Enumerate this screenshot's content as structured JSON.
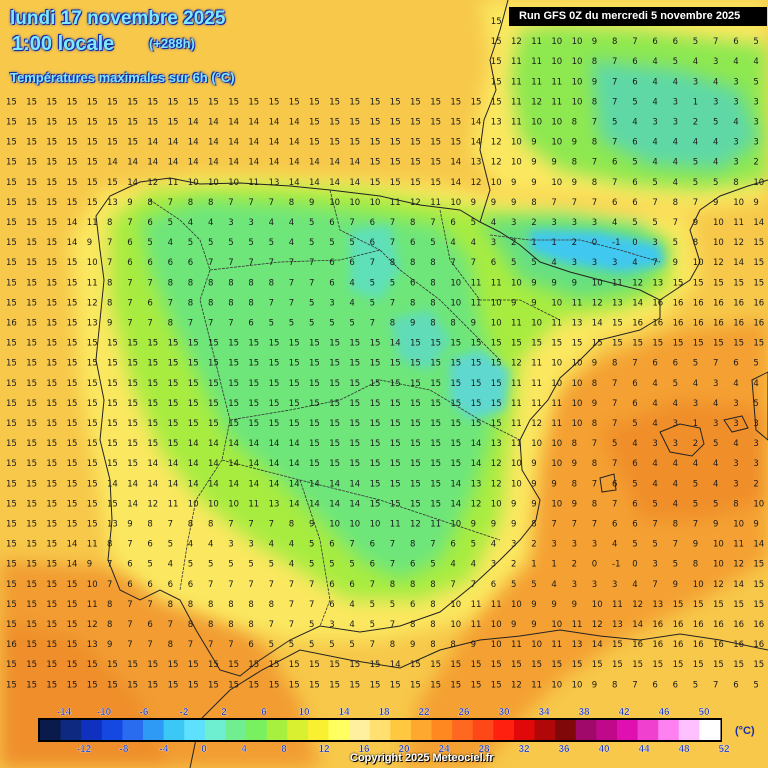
{
  "header": {
    "date": "lundi 17 novembre 2025",
    "local_time": "1:00 locale",
    "lead_time": "(+288h)",
    "parameter": "Températures maximales sur 6h (°C)"
  },
  "run_label": "Run GFS 0Z du mercredi 5 novembre 2025",
  "copyright": "Copyright 2025 Meteociel.fr",
  "legend": {
    "unit": "(°C)",
    "upper_labels": [
      "-14",
      "-10",
      "-6",
      "-2",
      "2",
      "6",
      "10",
      "14",
      "18",
      "22",
      "26",
      "30",
      "34",
      "38",
      "42",
      "46",
      "50"
    ],
    "lower_labels": [
      "-12",
      "-8",
      "-4",
      "0",
      "4",
      "8",
      "12",
      "16",
      "20",
      "24",
      "28",
      "32",
      "36",
      "40",
      "44",
      "48",
      "52"
    ],
    "colors": [
      "#0a1a4a",
      "#0d2a80",
      "#1030c0",
      "#1448e0",
      "#2a6cf0",
      "#2e9af5",
      "#3cc8f5",
      "#5ee0ff",
      "#6ef0d0",
      "#70ee90",
      "#78f060",
      "#a8f040",
      "#d8f030",
      "#f8f030",
      "#ffff60",
      "#fff0a0",
      "#ffe070",
      "#ffc840",
      "#ffa830",
      "#ff8820",
      "#ff6820",
      "#ff4818",
      "#ff2010",
      "#e00808",
      "#b00808",
      "#800808",
      "#a0086a",
      "#c0088a",
      "#e010b0",
      "#f040d0",
      "#ff80f0",
      "#ffc0ff",
      "#ffffff"
    ]
  },
  "map_values": {
    "description_note": "",
    "rows": [
      "15 15 15 15 15 15 15 15 15 15 15 15 15 15 15 15 15 15 15 14 15 15 15 15 15 15 15 15 15 15 15 15 15 15 15 15 15 15",
      "15 15 15 15 15 15 15 15 15 15 15 15 15 15 15 15 15 15 15 15 15 15 15 15 15 12 11 10 10 9 8 7 6 6 5 7 6 5",
      "15 15 15 15 15 15 15 15 15 15 15 15 15 15 15 15 15 15 15 15 15 15 15 15 15 11 11 10 10 8 7 6 4 5 4 3 4 4",
      "15 15 15 15 15 15 15 15 15 15 15 15 15 15 15 15 15 15 15 15 15 15 15 15 15 11 11 11 10 9 7 6 4 4 3 4 3 5",
      "15 15 15 15 15 15 15 15 15 15 15 15 15 15 15 15 15 15 15 15 15 15 15 15 15 11 12 11 10 8 7 5 4 3 1 3 3 3",
      "15 15 15 15 15 15 15 15 15 14 14 14 14 14 14 15 15 15 15 15 15 15 15 14 13 11 10 10 8 7 5 4 3 3 2 5 4 3",
      "15 15 15 15 15 15 15 14 14 14 14 14 14 14 14 15 15 15 15 15 15 15 15 14 12 10 9 10 9 8 7 6 4 4 4 4 3 3",
      "15 15 15 15 15 14 14 14 14 14 14 14 14 14 14 14 14 14 15 15 15 15 14 13 12 10 9 9 8 7 6 5 4 4 5 4 3 2",
      "15 15 15 15 15 15 14 12 11 10 10 10 11 13 14 14 14 14 15 15 15 15 14 12 10 9 9 10 9 8 7 6 5 4 5 5 8 10",
      "15 15 15 15 15 13 9 8 7 8 8 7 7 7 8 9 10 10 10 11 12 11 10 9 9 9 8 7 7 7 6 6 7 8 7 9 10 9",
      "15 15 15 14 11 8 7 6 5 4 4 3 3 4 4 5 6 7 6 7 8 7 6 5 4 3 2 3 3 3 4 5 5 7 9 10 11 14",
      "15 15 15 14 9 7 6 5 4 5 5 5 5 5 4 5 5 5 6 7 6 5 4 4 3 2 1 1 2 0 -1 0 3 5 8 10 12 15",
      "15 15 15 15 10 7 6 6 6 6 7 7 7 7 7 7 6 6 7 8 8 8 7 7 6 5 5 4 3 3 3 4 7 9 10 12 14 15",
      "15 15 15 15 11 8 7 7 8 8 8 8 8 8 7 7 6 4 5 5 6 8 10 11 11 10 9 9 9 10 11 12 13 15 15 15 15 15",
      "15 15 15 15 12 8 7 6 7 8 8 8 8 7 7 5 3 4 5 7 8 8 10 11 10 9 9 10 11 12 13 14 16 16 16 16 16 16",
      "16 15 15 15 13 9 7 7 8 7 7 7 6 5 5 5 5 5 7 8 9 8 8 9 10 11 10 11 13 14 15 16 16 16 16 16 16 16"
    ]
  }
}
